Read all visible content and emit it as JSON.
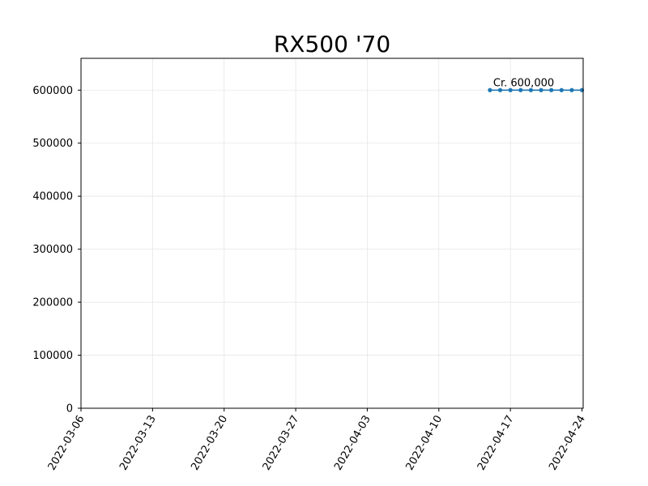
{
  "chart_data": {
    "type": "line",
    "title": "RX500 '70",
    "xlabel": "",
    "ylabel": "",
    "x_type": "date",
    "xlim": [
      "2022-03-06",
      "2022-04-24"
    ],
    "ylim": [
      0,
      660000
    ],
    "x_ticks": [
      "2022-03-06",
      "2022-03-13",
      "2022-03-20",
      "2022-03-27",
      "2022-04-03",
      "2022-04-10",
      "2022-04-17",
      "2022-04-24"
    ],
    "y_ticks": [
      0,
      100000,
      200000,
      300000,
      400000,
      500000,
      600000
    ],
    "grid": true,
    "series": [
      {
        "color": "#1f77b4",
        "x": [
          "2022-04-15",
          "2022-04-16",
          "2022-04-17",
          "2022-04-18",
          "2022-04-19",
          "2022-04-20",
          "2022-04-21",
          "2022-04-22",
          "2022-04-23",
          "2022-04-24"
        ],
        "y": [
          600000,
          600000,
          600000,
          600000,
          600000,
          600000,
          600000,
          600000,
          600000,
          600000
        ]
      }
    ],
    "annotations": [
      {
        "text": "Cr. 600,000",
        "x": "2022-04-15",
        "y": 600000
      }
    ]
  }
}
